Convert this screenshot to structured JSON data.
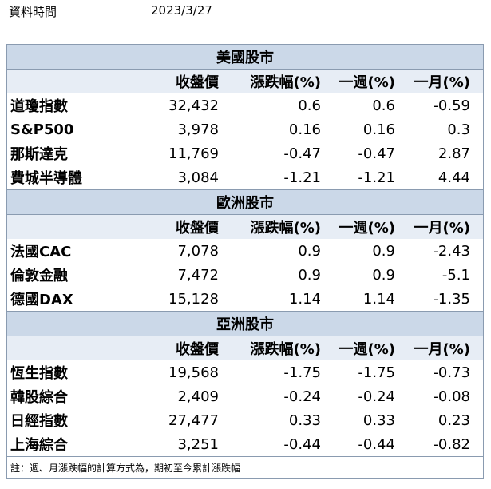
{
  "meta": {
    "label": "資料時間",
    "date": "2023/3/27"
  },
  "headers": [
    "",
    "收盤價",
    "漲跌幅(%)",
    "一週(%)",
    "一月(%)"
  ],
  "sections": [
    {
      "title": "美國股市",
      "rows": [
        {
          "name": "道瓊指數",
          "close": "32,432",
          "chg": "0.6",
          "week": "0.6",
          "month": "-0.59"
        },
        {
          "name": "S&P500",
          "close": "3,978",
          "chg": "0.16",
          "week": "0.16",
          "month": "0.3"
        },
        {
          "name": "那斯達克",
          "close": "11,769",
          "chg": "-0.47",
          "week": "-0.47",
          "month": "2.87"
        },
        {
          "name": "費城半導體",
          "close": "3,084",
          "chg": "-1.21",
          "week": "-1.21",
          "month": "4.44"
        }
      ]
    },
    {
      "title": "歐洲股市",
      "rows": [
        {
          "name": "法國CAC",
          "close": "7,078",
          "chg": "0.9",
          "week": "0.9",
          "month": "-2.43"
        },
        {
          "name": "倫敦金融",
          "close": "7,472",
          "chg": "0.9",
          "week": "0.9",
          "month": "-5.1"
        },
        {
          "name": "德國DAX",
          "close": "15,128",
          "chg": "1.14",
          "week": "1.14",
          "month": "-1.35"
        }
      ]
    },
    {
      "title": "亞洲股市",
      "rows": [
        {
          "name": "恆生指數",
          "close": "19,568",
          "chg": "-1.75",
          "week": "-1.75",
          "month": "-0.73"
        },
        {
          "name": "韓股綜合",
          "close": "2,409",
          "chg": "-0.24",
          "week": "-0.24",
          "month": "-0.08"
        },
        {
          "name": "日經指數",
          "close": "27,477",
          "chg": "0.33",
          "week": "0.33",
          "month": "0.23"
        },
        {
          "name": "上海綜合",
          "close": "3,251",
          "chg": "-0.44",
          "week": "-0.44",
          "month": "-0.82"
        }
      ]
    }
  ],
  "note": "註：週、月漲跌幅的計算方式為，期初至今累計漲跌幅"
}
